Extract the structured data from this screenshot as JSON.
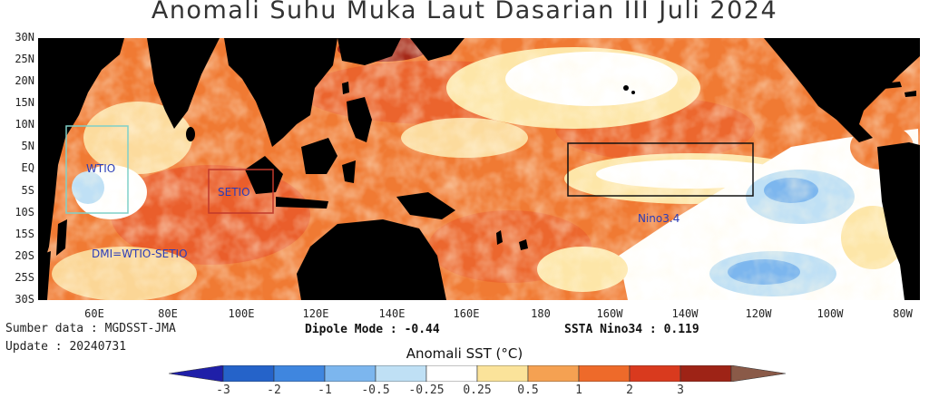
{
  "title": "Anomali Suhu Muka Laut Dasarian III Juli 2024",
  "lat_labels": [
    "30N",
    "25N",
    "20N",
    "15N",
    "10N",
    "5N",
    "EQ",
    "5S",
    "10S",
    "15S",
    "20S",
    "25S",
    "30S"
  ],
  "lon_labels": [
    "60E",
    "80E",
    "100E",
    "120E",
    "140E",
    "160E",
    "180",
    "160W",
    "140W",
    "120W",
    "100W",
    "80W"
  ],
  "boxes": {
    "wtio": {
      "label": "WTIO",
      "color": "#7fd0c8"
    },
    "setio": {
      "label": "SETIO",
      "color": "#c0392b"
    },
    "nino34": {
      "label": "Nino3.4",
      "color": "#111111"
    }
  },
  "dmi_formula": "DMI=WTIO-SETIO",
  "source_text": "Sumber data : MGDSST-JMA",
  "update_text": "Update : 20240731",
  "dipole_mode_text": "Dipole Mode : -0.44",
  "ssta_nino34_text": "SSTA Nino34 : 0.119",
  "indices": {
    "dipole_mode": -0.44,
    "ssta_nino34": 0.119
  },
  "colorbar": {
    "title": "Anomali SST (°C)",
    "ticks": [
      "-3",
      "-2",
      "-1",
      "-0.5",
      "-0.25",
      "0.25",
      "0.5",
      "1",
      "2",
      "3"
    ],
    "colors": [
      "#1f1fa8",
      "#2563c9",
      "#3f86df",
      "#7cb6ee",
      "#bfe0f5",
      "#ffffff",
      "#fbe39a",
      "#f5a152",
      "#ee6a2a",
      "#d93a1e",
      "#9e2316",
      "#8a5a48"
    ]
  }
}
